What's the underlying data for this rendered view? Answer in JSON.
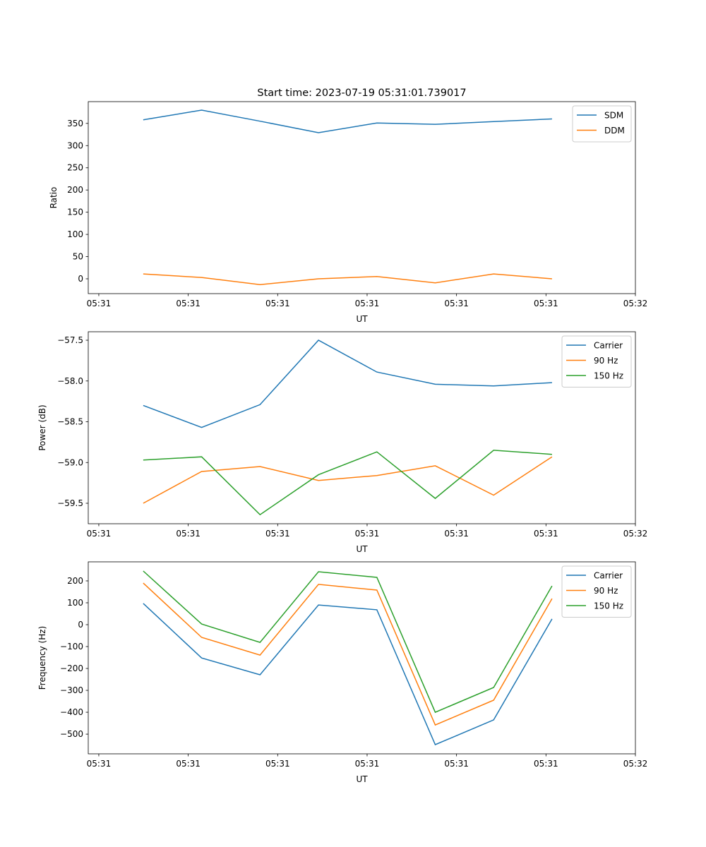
{
  "colors": {
    "c0": "#1f77b4",
    "c1": "#ff7f0e",
    "c2": "#2ca02c"
  },
  "chart_data": [
    {
      "type": "line",
      "title": "Start time: 2023-07-19 05:31:01.739017",
      "xlabel": "UT",
      "ylabel": "Ratio",
      "x": [
        4.97,
        11.5,
        18.03,
        24.56,
        31.09,
        37.62,
        44.15,
        50.68
      ],
      "xlim": [
        -1.18,
        60
      ],
      "xticks": [
        0,
        10,
        20,
        30,
        40,
        50,
        60
      ],
      "xtick_labels": [
        "05:31",
        "05:31",
        "05:31",
        "05:31",
        "05:31",
        "05:31",
        "05:32"
      ],
      "ylim": [
        -33.4,
        399
      ],
      "yticks": [
        0,
        50,
        100,
        150,
        200,
        250,
        300,
        350
      ],
      "ytick_labels": [
        "0",
        "50",
        "100",
        "150",
        "200",
        "250",
        "300",
        "350"
      ],
      "legend": "top-right",
      "series": [
        {
          "name": "SDM",
          "color": "#1f77b4",
          "values": [
            358,
            380,
            355,
            329,
            351,
            348,
            354,
            360
          ]
        },
        {
          "name": "DDM",
          "color": "#ff7f0e",
          "values": [
            11,
            3,
            -13,
            0,
            5,
            -9,
            11,
            0
          ]
        }
      ]
    },
    {
      "type": "line",
      "title": "",
      "xlabel": "UT",
      "ylabel": "Power (dB)",
      "x": [
        4.97,
        11.5,
        18.03,
        24.56,
        31.09,
        37.62,
        44.15,
        50.68
      ],
      "xlim": [
        -1.18,
        60
      ],
      "xticks": [
        0,
        10,
        20,
        30,
        40,
        50,
        60
      ],
      "xtick_labels": [
        "05:31",
        "05:31",
        "05:31",
        "05:31",
        "05:31",
        "05:31",
        "05:32"
      ],
      "ylim": [
        -59.751,
        -57.396
      ],
      "yticks": [
        -59.5,
        -59.0,
        -58.5,
        -58.0,
        -57.5
      ],
      "ytick_labels": [
        "−59.5",
        "−59.0",
        "−58.5",
        "−58.0",
        "−57.5"
      ],
      "legend": "top-right",
      "series": [
        {
          "name": "Carrier",
          "color": "#1f77b4",
          "values": [
            -58.3,
            -58.57,
            -58.29,
            -57.5,
            -57.89,
            -58.04,
            -58.06,
            -58.02
          ]
        },
        {
          "name": "90 Hz",
          "color": "#ff7f0e",
          "values": [
            -59.5,
            -59.11,
            -59.05,
            -59.22,
            -59.16,
            -59.04,
            -59.4,
            -58.93
          ]
        },
        {
          "name": "150 Hz",
          "color": "#2ca02c",
          "values": [
            -58.97,
            -58.93,
            -59.64,
            -59.15,
            -58.87,
            -59.44,
            -58.85,
            -58.9
          ]
        }
      ]
    },
    {
      "type": "line",
      "title": "",
      "xlabel": "UT",
      "ylabel": "Frequency (Hz)",
      "x": [
        4.97,
        11.5,
        18.03,
        24.56,
        31.09,
        37.62,
        44.15,
        50.68
      ],
      "xlim": [
        -1.18,
        60
      ],
      "xticks": [
        0,
        10,
        20,
        30,
        40,
        50,
        60
      ],
      "xtick_labels": [
        "05:31",
        "05:31",
        "05:31",
        "05:31",
        "05:31",
        "05:31",
        "05:32"
      ],
      "ylim": [
        -590,
        287
      ],
      "yticks": [
        -500,
        -400,
        -300,
        -200,
        -100,
        0,
        100,
        200
      ],
      "ytick_labels": [
        "−500",
        "−400",
        "−300",
        "−200",
        "−100",
        "0",
        "100",
        "200"
      ],
      "legend": "top-right",
      "series": [
        {
          "name": "Carrier",
          "color": "#1f77b4",
          "values": [
            97,
            -152,
            -229,
            90,
            68,
            -548,
            -435,
            26
          ]
        },
        {
          "name": "90 Hz",
          "color": "#ff7f0e",
          "values": [
            190,
            -58,
            -139,
            184,
            158,
            -458,
            -345,
            119
          ]
        },
        {
          "name": "150 Hz",
          "color": "#2ca02c",
          "values": [
            245,
            3,
            -81,
            242,
            216,
            -400,
            -287,
            177
          ]
        }
      ]
    }
  ]
}
